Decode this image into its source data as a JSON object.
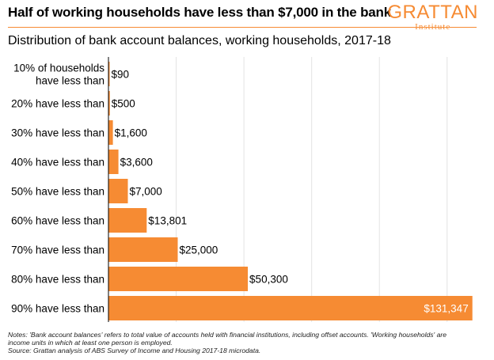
{
  "header": {
    "title": "Half of working households have less than $7,000 in the bank",
    "subtitle": "Distribution of bank account balances, working households, 2017-18",
    "logo_main": "GRATTAN",
    "logo_sub": "Institute"
  },
  "notes": {
    "line1": "Notes: 'Bank account balances' refers to total value of accounts held with financial institutions, including offset accounts. 'Working households' are income units in which at least one person is employed.",
    "line2": "Source: Grattan analysis of ABS Survey of Income and Housing 2017-18 microdata."
  },
  "chart_data": {
    "type": "bar",
    "orientation": "horizontal",
    "title": "Half of working households have less than $7,000 in the bank",
    "subtitle": "Distribution of bank account balances, working households, 2017-18",
    "categories": [
      "10% of households have less than",
      "20% have less than",
      "30% have less than",
      "40% have less than",
      "50% have less than",
      "60% have less than",
      "70% have less than",
      "80% have less than",
      "90% have less than"
    ],
    "values": [
      90,
      500,
      1600,
      3600,
      7000,
      13801,
      25000,
      50300,
      131347
    ],
    "data_labels": [
      "$90",
      "$500",
      "$1,600",
      "$3,600",
      "$7,000",
      "$13,801",
      "$25,000",
      "$50,300",
      "$131,347"
    ],
    "xlim": [
      0,
      132000
    ],
    "grid": true,
    "bar_color": "#f68b33",
    "label_inside_color": "#ffffff"
  }
}
